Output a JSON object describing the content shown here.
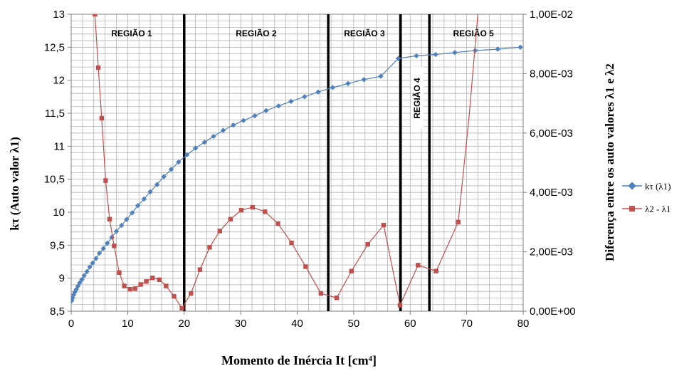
{
  "chart_data": {
    "type": "line",
    "xlabel": "Momento de Inércia It [cm⁴]",
    "ylabel_left": "kτ (Auto valor λ1)",
    "ylabel_right": "Diferença entre os auto valores λ1 e λ2",
    "xlim": [
      0,
      80
    ],
    "ylim_left": [
      8.5,
      13
    ],
    "ylim_right": [
      0,
      0.01
    ],
    "x_ticks": [
      "0",
      "10",
      "20",
      "30",
      "40",
      "50",
      "60",
      "70",
      "80"
    ],
    "y_ticks_left": [
      "8,5",
      "9",
      "9,5",
      "10",
      "10,5",
      "11",
      "11,5",
      "12",
      "12,5",
      "13"
    ],
    "y_ticks_right": [
      "0,00E+00",
      "2,00E-03",
      "4,00E-03",
      "6,00E-03",
      "8,00E-03",
      "1,00E-02"
    ],
    "grid": true,
    "legend_position": "right",
    "regions": [
      {
        "label": "REGIÃO 1",
        "x_start": 0,
        "x_end": 20
      },
      {
        "label": "REGIÃO 2",
        "x_start": 20,
        "x_end": 45.5
      },
      {
        "label": "REGIÃO 3",
        "x_start": 45.5,
        "x_end": 58.3
      },
      {
        "label": "REGIÃO 4",
        "x_start": 58.3,
        "x_end": 63.4
      },
      {
        "label": "REGIÃO 5",
        "x_start": 63.4,
        "x_end": 80
      }
    ],
    "boundaries": [
      20,
      45.5,
      58.3,
      63.4
    ],
    "series": [
      {
        "name": "kτ (λ1)",
        "axis": "left",
        "color": "#4f81bd",
        "marker": "diamond",
        "x": [
          0.1,
          0.25,
          0.45,
          0.65,
          0.9,
          1.2,
          1.5,
          1.9,
          2.3,
          2.8,
          3.3,
          3.8,
          4.4,
          5.0,
          5.7,
          6.4,
          7.2,
          8.0,
          8.9,
          9.8,
          10.8,
          11.8,
          12.9,
          14.0,
          15.2,
          16.4,
          17.7,
          19.0,
          20.5,
          22.0,
          23.6,
          25.2,
          26.9,
          28.7,
          30.5,
          32.5,
          34.5,
          36.7,
          38.9,
          41.3,
          43.7,
          46.3,
          49.0,
          51.8,
          54.8,
          57.9,
          61.1,
          64.5,
          67.9,
          71.5,
          75.5,
          79.5
        ],
        "y": [
          8.66,
          8.7,
          8.75,
          8.79,
          8.83,
          8.88,
          8.93,
          8.98,
          9.04,
          9.1,
          9.17,
          9.23,
          9.3,
          9.38,
          9.45,
          9.53,
          9.62,
          9.71,
          9.8,
          9.89,
          9.99,
          10.1,
          10.2,
          10.31,
          10.42,
          10.54,
          10.65,
          10.76,
          10.87,
          10.97,
          11.06,
          11.15,
          11.24,
          11.32,
          11.39,
          11.46,
          11.54,
          11.61,
          11.68,
          11.75,
          11.82,
          11.89,
          11.95,
          12.01,
          12.06,
          12.33,
          12.37,
          12.39,
          12.42,
          12.45,
          12.47,
          12.5
        ]
      },
      {
        "name": "λ2 - λ1",
        "axis": "right",
        "color": "#c0504d",
        "marker": "square",
        "x": [
          4.2,
          4.8,
          5.4,
          6.1,
          6.8,
          7.6,
          8.5,
          9.4,
          10.4,
          11.3,
          12.3,
          13.3,
          14.4,
          15.6,
          16.8,
          18.2,
          19.6,
          21.2,
          22.8,
          24.5,
          26.3,
          28.2,
          30.1,
          32.1,
          34.3,
          36.6,
          39.0,
          41.5,
          44.2,
          47.0,
          49.6,
          52.5,
          55.3,
          58.2,
          61.4,
          64.6,
          68.5
        ],
        "y": [
          0.01,
          0.0082,
          0.0065,
          0.0044,
          0.0031,
          0.0022,
          0.0013,
          0.00085,
          0.00074,
          0.00076,
          0.0009,
          0.001,
          0.00112,
          0.00106,
          0.00085,
          0.0005,
          0.0001,
          0.0006,
          0.0014,
          0.00215,
          0.0027,
          0.0031,
          0.0034,
          0.0035,
          0.00335,
          0.00295,
          0.0023,
          0.0015,
          0.0006,
          0.00045,
          0.00135,
          0.00225,
          0.0029,
          0.0002,
          0.00155,
          0.00135,
          0.003
        ]
      }
    ]
  }
}
